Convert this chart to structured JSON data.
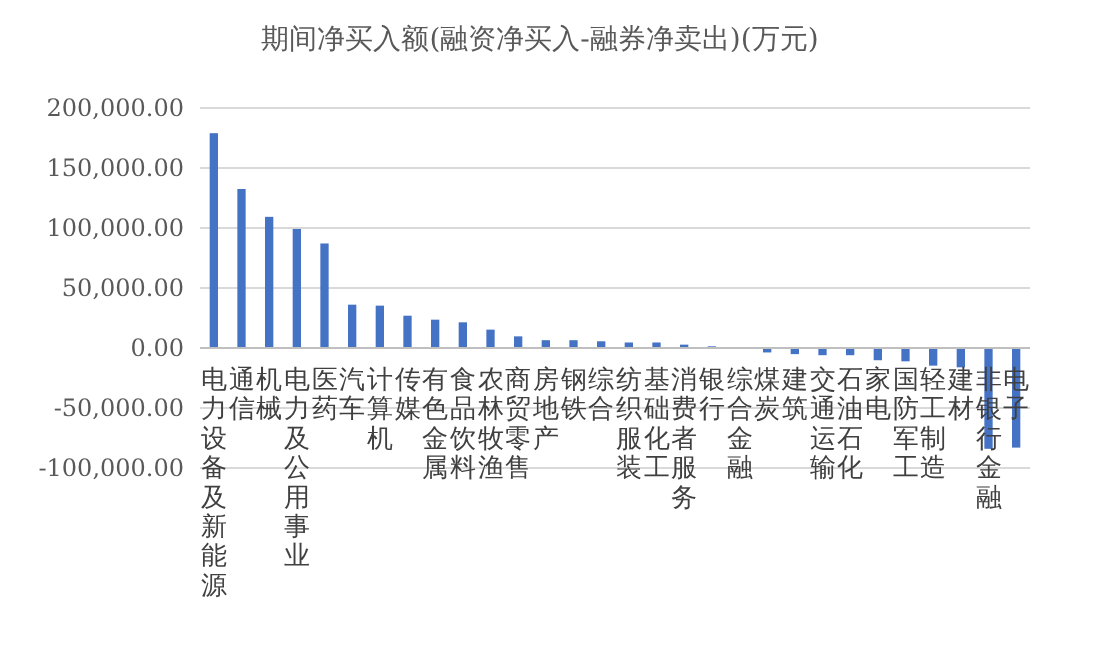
{
  "chart_data": {
    "type": "bar",
    "title": "期间净买入额(融资净买入-融券净卖出)(万元)",
    "categories": [
      "电力设备及新能源",
      "通信",
      "机械",
      "电力及公用事业",
      "医药",
      "汽车",
      "计算机",
      "传媒",
      "有色金属",
      "食品饮料",
      "农林牧渔",
      "商贸零售",
      "房地产",
      "钢铁",
      "综合",
      "纺织服装",
      "基础化工",
      "消费者服务",
      "银行",
      "综合金融",
      "煤炭",
      "建筑",
      "交通运输",
      "石油石化",
      "家电",
      "国防军工",
      "轻工制造",
      "建材",
      "非银行金融",
      "电子"
    ],
    "values": [
      179000,
      132500,
      109300,
      99200,
      87100,
      36100,
      35300,
      26900,
      23600,
      21400,
      15300,
      9700,
      6500,
      6500,
      5600,
      4600,
      4600,
      2800,
      1400,
      0,
      -3700,
      -5100,
      -6000,
      -6000,
      -10200,
      -11100,
      -14700,
      -16100,
      -84000,
      -83000
    ],
    "color": "#4472c4",
    "ylim": [
      -100000,
      200000
    ],
    "yticks": [
      {
        "value": -100000,
        "label": "-100,000.00"
      },
      {
        "value": -50000,
        "label": "-50,000.00"
      },
      {
        "value": 0,
        "label": "0.00"
      },
      {
        "value": 50000,
        "label": "50,000.00"
      },
      {
        "value": 100000,
        "label": "100,000.00"
      },
      {
        "value": 150000,
        "label": "150,000.00"
      },
      {
        "value": 200000,
        "label": "200,000.00"
      }
    ],
    "grid": "y"
  }
}
